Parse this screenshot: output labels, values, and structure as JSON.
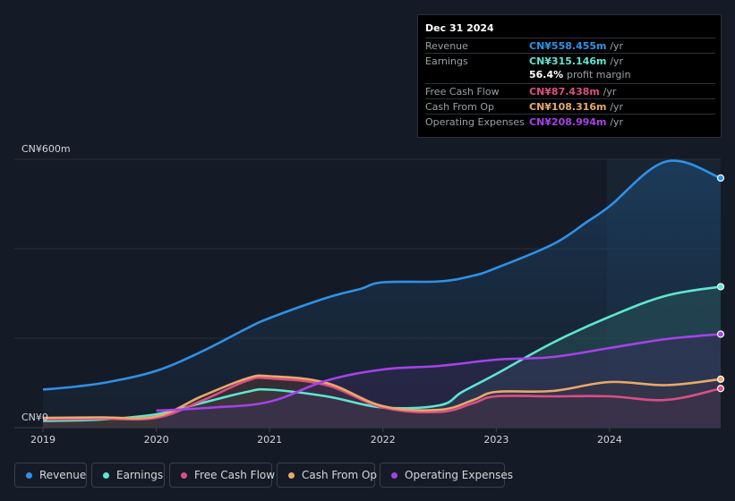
{
  "chart_data": {
    "type": "area",
    "x_ticks": [
      "2019",
      "2020",
      "2021",
      "2022",
      "2023",
      "2024"
    ],
    "x_range": [
      2018.75,
      2024.98
    ],
    "ylim": [
      0,
      600
    ],
    "y_labels": {
      "top": "CN¥600m",
      "bottom": "CN¥0"
    },
    "forecast_start": 2024.0,
    "series": [
      {
        "name": "Revenue",
        "color": "#2f91e6",
        "points": [
          [
            2019.0,
            85
          ],
          [
            2019.3,
            92
          ],
          [
            2019.6,
            103
          ],
          [
            2020.0,
            127
          ],
          [
            2020.4,
            170
          ],
          [
            2020.8,
            222
          ],
          [
            2021.0,
            245
          ],
          [
            2021.5,
            290
          ],
          [
            2021.8,
            310
          ],
          [
            2022.0,
            325
          ],
          [
            2022.5,
            327
          ],
          [
            2022.8,
            340
          ],
          [
            2023.0,
            357
          ],
          [
            2023.5,
            410
          ],
          [
            2023.8,
            460
          ],
          [
            2024.0,
            495
          ],
          [
            2024.5,
            595
          ],
          [
            2024.98,
            558
          ]
        ]
      },
      {
        "name": "Earnings",
        "color": "#5ee6d2",
        "points": [
          [
            2019.0,
            15
          ],
          [
            2019.5,
            18
          ],
          [
            2020.0,
            30
          ],
          [
            2020.4,
            55
          ],
          [
            2020.8,
            80
          ],
          [
            2021.0,
            85
          ],
          [
            2021.5,
            70
          ],
          [
            2022.0,
            45
          ],
          [
            2022.5,
            50
          ],
          [
            2022.7,
            80
          ],
          [
            2023.0,
            120
          ],
          [
            2023.5,
            190
          ],
          [
            2024.0,
            248
          ],
          [
            2024.5,
            295
          ],
          [
            2024.98,
            315.146
          ]
        ]
      },
      {
        "name": "Free Cash Flow",
        "color": "#d94f86",
        "points": [
          [
            2019.0,
            18
          ],
          [
            2019.5,
            20
          ],
          [
            2020.0,
            22
          ],
          [
            2020.4,
            60
          ],
          [
            2020.8,
            105
          ],
          [
            2021.0,
            110
          ],
          [
            2021.5,
            95
          ],
          [
            2022.0,
            45
          ],
          [
            2022.5,
            35
          ],
          [
            2022.8,
            55
          ],
          [
            2023.0,
            70
          ],
          [
            2023.5,
            70
          ],
          [
            2024.0,
            70
          ],
          [
            2024.5,
            62
          ],
          [
            2024.98,
            87.438
          ]
        ]
      },
      {
        "name": "Cash From Op",
        "color": "#e9a968",
        "points": [
          [
            2019.0,
            22
          ],
          [
            2019.5,
            23
          ],
          [
            2020.0,
            25
          ],
          [
            2020.4,
            70
          ],
          [
            2020.8,
            110
          ],
          [
            2021.0,
            115
          ],
          [
            2021.5,
            100
          ],
          [
            2022.0,
            48
          ],
          [
            2022.5,
            40
          ],
          [
            2022.8,
            62
          ],
          [
            2023.0,
            80
          ],
          [
            2023.5,
            82
          ],
          [
            2024.0,
            102
          ],
          [
            2024.5,
            95
          ],
          [
            2024.98,
            108.316
          ]
        ]
      },
      {
        "name": "Operating Expenses",
        "color": "#a542e8",
        "points": [
          [
            2020.0,
            38
          ],
          [
            2020.5,
            45
          ],
          [
            2021.0,
            58
          ],
          [
            2021.5,
            105
          ],
          [
            2022.0,
            130
          ],
          [
            2022.5,
            138
          ],
          [
            2023.0,
            152
          ],
          [
            2023.5,
            158
          ],
          [
            2024.0,
            178
          ],
          [
            2024.5,
            198
          ],
          [
            2024.98,
            208.994
          ]
        ]
      }
    ]
  },
  "tooltip": {
    "date": "Dec 31 2024",
    "rows": [
      {
        "label": "Revenue",
        "value": "CN¥558.455m",
        "unit": "/yr",
        "color": "#2f91e6"
      },
      {
        "label": "Earnings",
        "value": "CN¥315.146m",
        "unit": "/yr",
        "color": "#5ee6d2"
      },
      {
        "label": "Free Cash Flow",
        "value": "CN¥87.438m",
        "unit": "/yr",
        "color": "#d94f86"
      },
      {
        "label": "Cash From Op",
        "value": "CN¥108.316m",
        "unit": "/yr",
        "color": "#e9a968"
      },
      {
        "label": "Operating Expenses",
        "value": "CN¥208.994m",
        "unit": "/yr",
        "color": "#a542e8"
      }
    ],
    "margin_value": "56.4%",
    "margin_label": "profit margin"
  },
  "legend": [
    {
      "label": "Revenue",
      "color": "#2f91e6"
    },
    {
      "label": "Earnings",
      "color": "#5ee6d2"
    },
    {
      "label": "Free Cash Flow",
      "color": "#d94f86"
    },
    {
      "label": "Cash From Op",
      "color": "#e9a968"
    },
    {
      "label": "Operating Expenses",
      "color": "#a542e8"
    }
  ]
}
